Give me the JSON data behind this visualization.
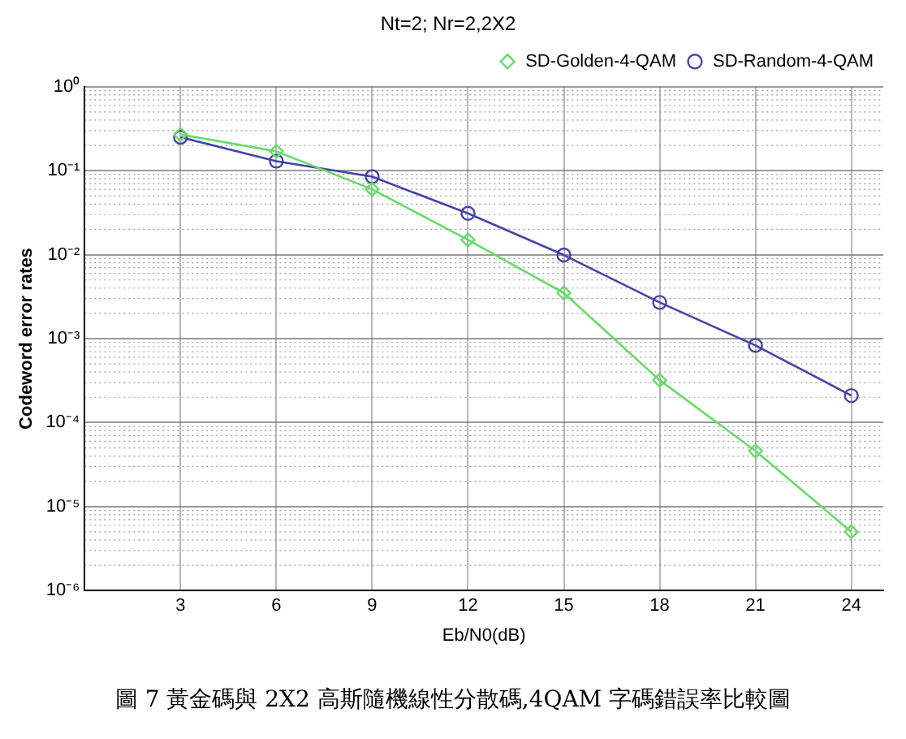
{
  "chart_data": {
    "type": "line",
    "title": "Nt=2; Nr=2,2X2",
    "xlabel": "Eb/N0(dB)",
    "ylabel": "Codeword error rates",
    "annotations": [
      "圖 7 黃金碼與 2X2 高斯隨機線性分散碼,4QAM 字碼錯誤率比較圖"
    ],
    "x": [
      3,
      6,
      9,
      12,
      15,
      18,
      21,
      24
    ],
    "series": [
      {
        "name": "SD-Golden-4-QAM",
        "color": "#66dd66",
        "marker": "diamond",
        "values": [
          0.27,
          0.17,
          0.06,
          0.015,
          0.0035,
          0.00032,
          4.6e-05,
          5e-06
        ]
      },
      {
        "name": "SD-Random-4-QAM",
        "color": "#4444aa",
        "marker": "circle",
        "values": [
          0.25,
          0.13,
          0.085,
          0.031,
          0.0099,
          0.0027,
          0.00083,
          0.00021
        ]
      }
    ],
    "log": "y",
    "xlim": [
      0,
      25
    ],
    "xticks": [
      3,
      6,
      9,
      12,
      15,
      18,
      21,
      24
    ],
    "ylim": [
      1e-06,
      1
    ],
    "yticks": [
      {
        "value": 1e-06,
        "label": "10⁻⁶"
      },
      {
        "value": 1e-05,
        "label": "10⁻⁵"
      },
      {
        "value": 0.0001,
        "label": "10⁻⁴"
      },
      {
        "value": 0.001,
        "label": "10⁻³"
      },
      {
        "value": 0.01,
        "label": "10⁻²"
      },
      {
        "value": 0.1,
        "label": "10⁻¹"
      },
      {
        "value": 1,
        "label": "10⁰"
      }
    ],
    "grid": true,
    "legend": "top right",
    "line_style": "solid"
  }
}
